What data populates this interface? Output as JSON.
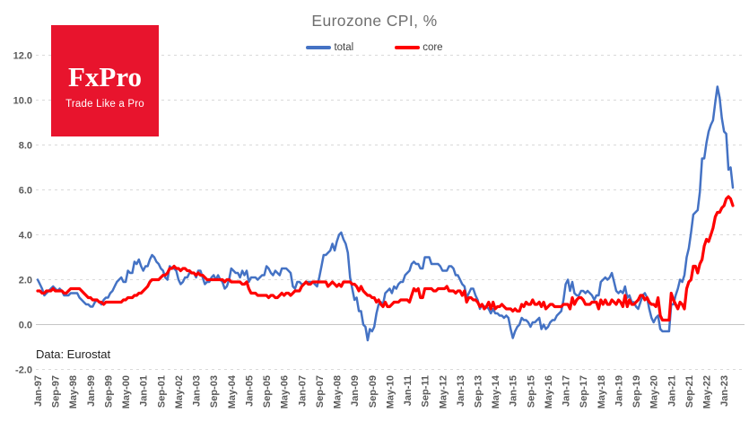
{
  "header": {
    "title": "Eurozone CPI, %"
  },
  "logo": {
    "brand": "FxPro",
    "tagline": "Trade Like a Pro",
    "bg_color": "#e8142d",
    "text_color": "#ffffff"
  },
  "footer": {
    "source_note": "Data: Eurostat"
  },
  "legend": {
    "items": [
      {
        "label": "total",
        "color": "#4472C4"
      },
      {
        "label": "core",
        "color": "#FF0000"
      }
    ]
  },
  "chart_data": {
    "type": "line",
    "title": "Eurozone CPI, %",
    "frequency": "monthly",
    "x_start": "Jan-1997",
    "x_end": "May-2023",
    "x_tick_step_months": 8,
    "x_tick_labels": [
      "Jan-97",
      "Sep-97",
      "May-98",
      "Jan-99",
      "Sep-99",
      "May-00",
      "Jan-01",
      "Sep-01",
      "May-02",
      "Jan-03",
      "Sep-03",
      "May-04",
      "Jan-05",
      "Sep-05",
      "May-06",
      "Jan-07",
      "Sep-07",
      "May-08",
      "Jan-09",
      "Sep-09",
      "May-10",
      "Jan-11",
      "Sep-11",
      "May-12",
      "Jan-13",
      "Sep-13",
      "May-14",
      "Jan-15",
      "Sep-15",
      "May-16",
      "Jan-17",
      "Sep-17",
      "May-18",
      "Jan-19",
      "Sep-19",
      "May-20",
      "Jan-21",
      "Sep-21",
      "May-22",
      "Jan-23"
    ],
    "y_ticks": [
      "12.0",
      "10.0",
      "8.0",
      "6.0",
      "4.0",
      "2.0",
      "0.0",
      "-2.0"
    ],
    "ylim": [
      -2.0,
      13.0
    ],
    "grid": "horizontal-dashed",
    "legend_position": "top-center",
    "axis_color": "#595959",
    "gridline_color": "#d9d9d9",
    "zeroline_color": "#c6c6c6",
    "series": [
      {
        "name": "total",
        "color": "#4472C4",
        "line_width": 2.5,
        "values": [
          2.0,
          1.8,
          1.6,
          1.3,
          1.4,
          1.5,
          1.6,
          1.7,
          1.6,
          1.5,
          1.6,
          1.5,
          1.3,
          1.3,
          1.3,
          1.4,
          1.4,
          1.4,
          1.4,
          1.2,
          1.1,
          1.0,
          0.9,
          0.9,
          0.8,
          0.8,
          1.0,
          1.1,
          1.0,
          0.9,
          1.1,
          1.2,
          1.2,
          1.4,
          1.5,
          1.7,
          1.9,
          2.0,
          2.1,
          1.9,
          1.9,
          2.4,
          2.3,
          2.3,
          2.8,
          2.7,
          2.9,
          2.6,
          2.4,
          2.6,
          2.6,
          2.9,
          3.1,
          3.0,
          2.8,
          2.7,
          2.5,
          2.4,
          2.1,
          2.0,
          2.6,
          2.5,
          2.5,
          2.4,
          2.0,
          1.8,
          1.9,
          2.1,
          2.1,
          2.3,
          2.3,
          2.3,
          2.1,
          2.4,
          2.4,
          2.1,
          1.8,
          1.9,
          1.9,
          2.1,
          2.2,
          2.0,
          2.2,
          2.0,
          1.9,
          1.6,
          1.7,
          2.0,
          2.5,
          2.4,
          2.3,
          2.3,
          2.1,
          2.4,
          2.2,
          2.4,
          1.9,
          2.1,
          2.1,
          2.1,
          2.0,
          2.1,
          2.2,
          2.2,
          2.6,
          2.5,
          2.3,
          2.2,
          2.4,
          2.3,
          2.2,
          2.5,
          2.5,
          2.5,
          2.4,
          2.3,
          1.7,
          1.6,
          1.9,
          1.9,
          1.8,
          1.8,
          1.9,
          1.9,
          1.9,
          1.9,
          1.8,
          1.7,
          2.1,
          2.6,
          3.1,
          3.1,
          3.2,
          3.3,
          3.6,
          3.3,
          3.7,
          4.0,
          4.1,
          3.8,
          3.6,
          3.2,
          2.1,
          1.6,
          1.1,
          1.2,
          0.6,
          0.6,
          0.0,
          -0.1,
          -0.7,
          -0.2,
          -0.3,
          -0.1,
          0.5,
          0.9,
          1.0,
          0.9,
          1.4,
          1.5,
          1.6,
          1.4,
          1.7,
          1.6,
          1.8,
          1.9,
          1.9,
          2.2,
          2.3,
          2.4,
          2.7,
          2.8,
          2.7,
          2.7,
          2.5,
          2.5,
          3.0,
          3.0,
          3.0,
          2.7,
          2.7,
          2.7,
          2.7,
          2.6,
          2.4,
          2.4,
          2.4,
          2.6,
          2.6,
          2.5,
          2.2,
          2.2,
          2.0,
          1.8,
          1.7,
          1.2,
          1.4,
          1.6,
          1.6,
          1.3,
          1.1,
          0.7,
          0.9,
          0.8,
          0.8,
          0.7,
          0.5,
          0.7,
          0.5,
          0.5,
          0.4,
          0.4,
          0.3,
          0.4,
          0.3,
          -0.2,
          -0.6,
          -0.3,
          -0.1,
          0.0,
          0.3,
          0.2,
          0.2,
          0.1,
          -0.1,
          0.1,
          0.1,
          0.2,
          0.3,
          -0.2,
          0.0,
          -0.2,
          -0.1,
          0.1,
          0.2,
          0.2,
          0.4,
          0.5,
          0.6,
          1.1,
          1.8,
          2.0,
          1.5,
          1.9,
          1.4,
          1.3,
          1.3,
          1.5,
          1.5,
          1.4,
          1.5,
          1.4,
          1.3,
          1.1,
          1.3,
          1.3,
          1.9,
          2.0,
          2.1,
          2.0,
          2.1,
          2.3,
          1.9,
          1.5,
          1.4,
          1.5,
          1.4,
          1.7,
          1.2,
          1.3,
          1.0,
          1.0,
          0.8,
          0.7,
          1.0,
          1.3,
          1.4,
          1.2,
          0.7,
          0.3,
          0.1,
          0.3,
          0.4,
          -0.2,
          -0.3,
          -0.3,
          -0.3,
          -0.3,
          0.9,
          0.9,
          1.3,
          1.6,
          2.0,
          1.9,
          2.2,
          3.0,
          3.4,
          4.1,
          4.9,
          5.0,
          5.1,
          5.9,
          7.4,
          7.4,
          8.1,
          8.6,
          8.9,
          9.1,
          9.9,
          10.6,
          10.1,
          9.2,
          8.6,
          8.5,
          6.9,
          7.0,
          6.1
        ]
      },
      {
        "name": "core",
        "color": "#FF0000",
        "line_width": 3.2,
        "values": [
          1.5,
          1.5,
          1.4,
          1.4,
          1.5,
          1.5,
          1.5,
          1.6,
          1.5,
          1.5,
          1.5,
          1.5,
          1.4,
          1.4,
          1.5,
          1.6,
          1.6,
          1.6,
          1.6,
          1.6,
          1.5,
          1.4,
          1.3,
          1.2,
          1.2,
          1.1,
          1.1,
          1.1,
          1.0,
          1.0,
          0.9,
          1.0,
          1.0,
          1.0,
          1.0,
          1.0,
          1.0,
          1.0,
          1.0,
          1.1,
          1.1,
          1.2,
          1.2,
          1.2,
          1.3,
          1.3,
          1.4,
          1.4,
          1.5,
          1.6,
          1.7,
          1.9,
          2.0,
          2.0,
          2.0,
          2.0,
          2.1,
          2.2,
          2.2,
          2.3,
          2.5,
          2.5,
          2.6,
          2.5,
          2.5,
          2.4,
          2.5,
          2.5,
          2.4,
          2.4,
          2.3,
          2.3,
          2.2,
          2.3,
          2.2,
          2.2,
          2.1,
          2.0,
          2.0,
          2.0,
          2.0,
          2.0,
          2.0,
          2.0,
          2.0,
          1.9,
          2.0,
          2.0,
          1.9,
          1.9,
          1.9,
          1.9,
          1.9,
          1.8,
          1.8,
          1.9,
          1.6,
          1.4,
          1.4,
          1.4,
          1.3,
          1.3,
          1.3,
          1.3,
          1.3,
          1.2,
          1.3,
          1.3,
          1.2,
          1.2,
          1.3,
          1.4,
          1.3,
          1.4,
          1.4,
          1.3,
          1.4,
          1.5,
          1.5,
          1.5,
          1.7,
          1.8,
          1.9,
          1.8,
          1.8,
          1.9,
          1.9,
          1.9,
          1.9,
          1.9,
          1.9,
          1.9,
          1.7,
          1.8,
          1.9,
          1.8,
          1.7,
          1.8,
          1.7,
          1.9,
          1.9,
          1.9,
          1.9,
          1.8,
          1.8,
          1.7,
          1.5,
          1.7,
          1.5,
          1.4,
          1.3,
          1.3,
          1.2,
          1.2,
          1.0,
          1.1,
          0.9,
          0.8,
          1.0,
          0.8,
          0.8,
          0.9,
          1.0,
          1.0,
          1.0,
          1.1,
          1.1,
          1.1,
          1.1,
          1.0,
          1.3,
          1.6,
          1.5,
          1.6,
          1.2,
          1.2,
          1.6,
          1.6,
          1.6,
          1.6,
          1.5,
          1.5,
          1.6,
          1.6,
          1.6,
          1.6,
          1.7,
          1.5,
          1.5,
          1.5,
          1.4,
          1.5,
          1.5,
          1.3,
          1.5,
          1.0,
          1.2,
          1.2,
          1.1,
          1.1,
          1.0,
          0.8,
          0.9,
          0.7,
          0.8,
          1.0,
          0.7,
          1.0,
          0.7,
          0.8,
          0.8,
          0.9,
          0.8,
          0.7,
          0.7,
          0.7,
          0.6,
          0.7,
          0.6,
          0.6,
          0.9,
          0.8,
          1.0,
          0.9,
          0.9,
          1.1,
          0.9,
          0.9,
          1.0,
          0.8,
          1.0,
          0.7,
          0.8,
          0.9,
          0.9,
          0.8,
          0.8,
          0.8,
          0.8,
          0.9,
          0.9,
          0.9,
          0.7,
          1.2,
          0.9,
          1.1,
          1.2,
          1.2,
          1.1,
          0.9,
          0.9,
          0.9,
          1.0,
          1.0,
          1.0,
          0.7,
          1.1,
          0.9,
          1.1,
          0.9,
          0.9,
          1.1,
          1.0,
          0.9,
          1.1,
          1.0,
          0.8,
          1.3,
          0.8,
          1.1,
          0.9,
          0.9,
          1.0,
          1.1,
          1.3,
          1.3,
          1.1,
          1.2,
          1.0,
          0.9,
          0.9,
          0.8,
          1.2,
          0.4,
          0.2,
          0.2,
          0.2,
          0.2,
          1.4,
          1.1,
          0.9,
          0.7,
          1.0,
          0.9,
          0.7,
          1.6,
          1.9,
          2.0,
          2.6,
          2.6,
          2.3,
          2.7,
          2.9,
          3.5,
          3.8,
          3.7,
          4.0,
          4.3,
          4.8,
          5.0,
          5.0,
          5.2,
          5.3,
          5.6,
          5.7,
          5.6,
          5.3
        ]
      }
    ]
  }
}
